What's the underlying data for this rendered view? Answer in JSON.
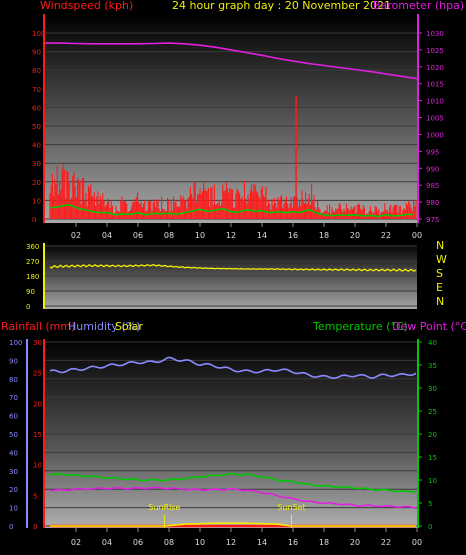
{
  "header": {
    "left_label": "Windspeed (kph)",
    "center_label": "24 hour graph day : 20 November 2021",
    "right_label": "Barometer (hpa)"
  },
  "lower_header": {
    "rainfall_label": "Rainfall (mm)",
    "humidity_label": "Humidity (%)",
    "solar_label": "Solar",
    "temperature_label": "Temperature (°C)",
    "dewpoint_label": "Dew Point (°C)"
  },
  "colors": {
    "wind": "#ff1a1a",
    "wind_avg": "#00c800",
    "wind_calm": "#ffffff",
    "barometer": "#e020e0",
    "direction": "#f0f000",
    "humidity": "#8a8aff",
    "temperature": "#00c800",
    "dewpoint": "#e020e0",
    "rainfall": "#ff1a1a",
    "solar": "#f0f000",
    "center_text": "#f0f000",
    "grid": "#3a3a3a"
  },
  "chart_data": [
    {
      "type": "line",
      "title": "24 hour graph day : 20 November 2021",
      "x_tick_labels": [
        "02",
        "04",
        "06",
        "08",
        "10",
        "12",
        "14",
        "16",
        "18",
        "20",
        "22",
        "00"
      ],
      "x_range_hours": [
        0,
        24
      ],
      "left_axis": {
        "label": "Windspeed (kph)",
        "ylim": [
          0,
          100
        ],
        "ticks": [
          0,
          10,
          20,
          30,
          40,
          50,
          60,
          70,
          80,
          90,
          100
        ]
      },
      "right_axis": {
        "label": "Barometer (hpa)",
        "ylim": [
          975,
          1030
        ],
        "ticks": [
          975,
          980,
          985,
          990,
          995,
          1000,
          1005,
          1010,
          1015,
          1020,
          1025,
          1030
        ]
      },
      "series": [
        {
          "name": "Windspeed (kph)",
          "axis": "left",
          "x": [
            0.5,
            1,
            1.5,
            2,
            2.5,
            3,
            3.5,
            4,
            4.5,
            5,
            5.5,
            6,
            6.5,
            7,
            7.5,
            8,
            8.5,
            9,
            9.5,
            10,
            10.5,
            11,
            11.5,
            12,
            12.5,
            13,
            13.5,
            14,
            14.5,
            15,
            15.5,
            16,
            16.5,
            17,
            17.5,
            18,
            18.5,
            19,
            19.5,
            20,
            20.5,
            21,
            21.5,
            22,
            22.5,
            23,
            23.5
          ],
          "y": [
            22,
            24,
            28,
            22,
            18,
            15,
            12,
            13,
            8,
            10,
            9,
            12,
            8,
            11,
            10,
            11,
            9,
            12,
            15,
            19,
            14,
            17,
            20,
            14,
            13,
            18,
            15,
            16,
            12,
            14,
            12,
            14,
            12,
            19,
            12,
            8,
            6,
            8,
            7,
            8,
            6,
            7,
            5,
            8,
            6,
            7,
            9
          ]
        },
        {
          "name": "Wind gust",
          "axis": "left",
          "x": [
            16.2
          ],
          "y": [
            66
          ]
        },
        {
          "name": "Barometer (hpa)",
          "axis": "right",
          "x": [
            0,
            1,
            2,
            3,
            4,
            5,
            6,
            7,
            8,
            9,
            10,
            11,
            12,
            13,
            14,
            15,
            16,
            17,
            18,
            19,
            20,
            21,
            22,
            23,
            24
          ],
          "y": [
            1027,
            1027,
            1026.9,
            1026.8,
            1026.8,
            1026.8,
            1026.8,
            1026.9,
            1027,
            1026.8,
            1026.4,
            1025.8,
            1025,
            1024.2,
            1023.4,
            1022.5,
            1021.7,
            1021,
            1020.4,
            1019.8,
            1019.2,
            1018.6,
            1017.9,
            1017.2,
            1016.5
          ]
        }
      ]
    },
    {
      "type": "line",
      "title": "",
      "left_axis": {
        "label": "",
        "ylim": [
          0,
          360
        ],
        "ticks": [
          0,
          90,
          180,
          270,
          360
        ]
      },
      "right_labels": [
        "N",
        "W",
        "S",
        "E",
        "N"
      ],
      "series": [
        {
          "name": "Wind direction",
          "x": [
            0,
            1,
            2,
            3,
            4,
            5,
            6,
            7,
            8,
            9,
            10,
            11,
            12,
            13,
            14,
            15,
            16,
            17,
            18,
            19,
            20,
            21,
            22,
            23,
            24
          ],
          "y": [
            232,
            238,
            240,
            242,
            241,
            240,
            242,
            245,
            238,
            232,
            228,
            225,
            224,
            222,
            222,
            221,
            220,
            219,
            218,
            218,
            217,
            216,
            216,
            215,
            214
          ]
        }
      ]
    },
    {
      "type": "line",
      "title": "",
      "x_tick_labels": [
        "02",
        "04",
        "06",
        "08",
        "10",
        "12",
        "14",
        "16",
        "18",
        "20",
        "22",
        "00"
      ],
      "annotations": [
        {
          "text": "SunRise",
          "x_hours": 7.7
        },
        {
          "text": "SunSet",
          "x_hours": 15.9
        }
      ],
      "axes": {
        "humidity": {
          "label": "Humidity (%)",
          "ylim": [
            0,
            100
          ],
          "ticks": [
            0,
            10,
            20,
            30,
            40,
            50,
            60,
            70,
            80,
            90,
            100
          ]
        },
        "rainfall": {
          "label": "Rainfall (mm)",
          "ylim": [
            0,
            30
          ],
          "ticks": [
            0,
            5,
            10,
            15,
            20,
            25,
            30
          ]
        },
        "temperature": {
          "label": "Temperature (°C)",
          "ylim": [
            0,
            40
          ],
          "ticks": [
            0,
            5,
            10,
            15,
            20,
            25,
            30,
            35,
            40
          ]
        }
      },
      "series": [
        {
          "name": "Humidity (%)",
          "axis": "humidity",
          "x": [
            0,
            1,
            2,
            3,
            4,
            5,
            6,
            7,
            8,
            9,
            10,
            11,
            12,
            13,
            14,
            15,
            16,
            17,
            18,
            19,
            20,
            21,
            22,
            23,
            24
          ],
          "y": [
            84,
            84,
            85,
            86,
            87,
            88,
            89,
            89,
            91,
            90,
            88,
            87,
            85,
            84,
            84,
            85,
            84,
            82,
            81,
            81,
            82,
            81,
            82,
            82,
            83
          ]
        },
        {
          "name": "Temperature (°C)",
          "axis": "temperature",
          "x": [
            0,
            1,
            2,
            3,
            4,
            5,
            6,
            7,
            8,
            9,
            10,
            11,
            12,
            13,
            14,
            15,
            16,
            17,
            18,
            19,
            20,
            21,
            22,
            23,
            24
          ],
          "y": [
            11,
            11.3,
            11,
            10.8,
            10.5,
            10.3,
            10,
            10,
            10,
            10.3,
            10.7,
            11,
            11.3,
            11.2,
            10.7,
            10,
            9.6,
            9,
            8.7,
            8.5,
            8.3,
            8,
            7.8,
            7.5,
            7.5
          ]
        },
        {
          "name": "Dew Point (°C)",
          "axis": "temperature",
          "x": [
            0,
            1,
            2,
            3,
            4,
            5,
            6,
            7,
            8,
            9,
            10,
            11,
            12,
            13,
            14,
            15,
            16,
            17,
            18,
            19,
            20,
            21,
            22,
            23,
            24
          ],
          "y": [
            7.8,
            7.8,
            8,
            8.1,
            8.2,
            8.2,
            8.2,
            8.3,
            8.2,
            8,
            7.9,
            7.9,
            8,
            7.8,
            7.3,
            6.6,
            5.9,
            5.3,
            5,
            4.8,
            4.5,
            4.4,
            4.3,
            4.2,
            4
          ]
        },
        {
          "name": "Rainfall (mm)",
          "axis": "rainfall",
          "x": [
            0,
            24
          ],
          "y": [
            0,
            0
          ]
        },
        {
          "name": "Solar",
          "axis": "humidity",
          "x": [
            0,
            7.7,
            9,
            11,
            13,
            15,
            15.9,
            24
          ],
          "y": [
            0,
            0,
            1,
            1.5,
            1.5,
            1,
            0,
            0
          ]
        }
      ]
    }
  ]
}
